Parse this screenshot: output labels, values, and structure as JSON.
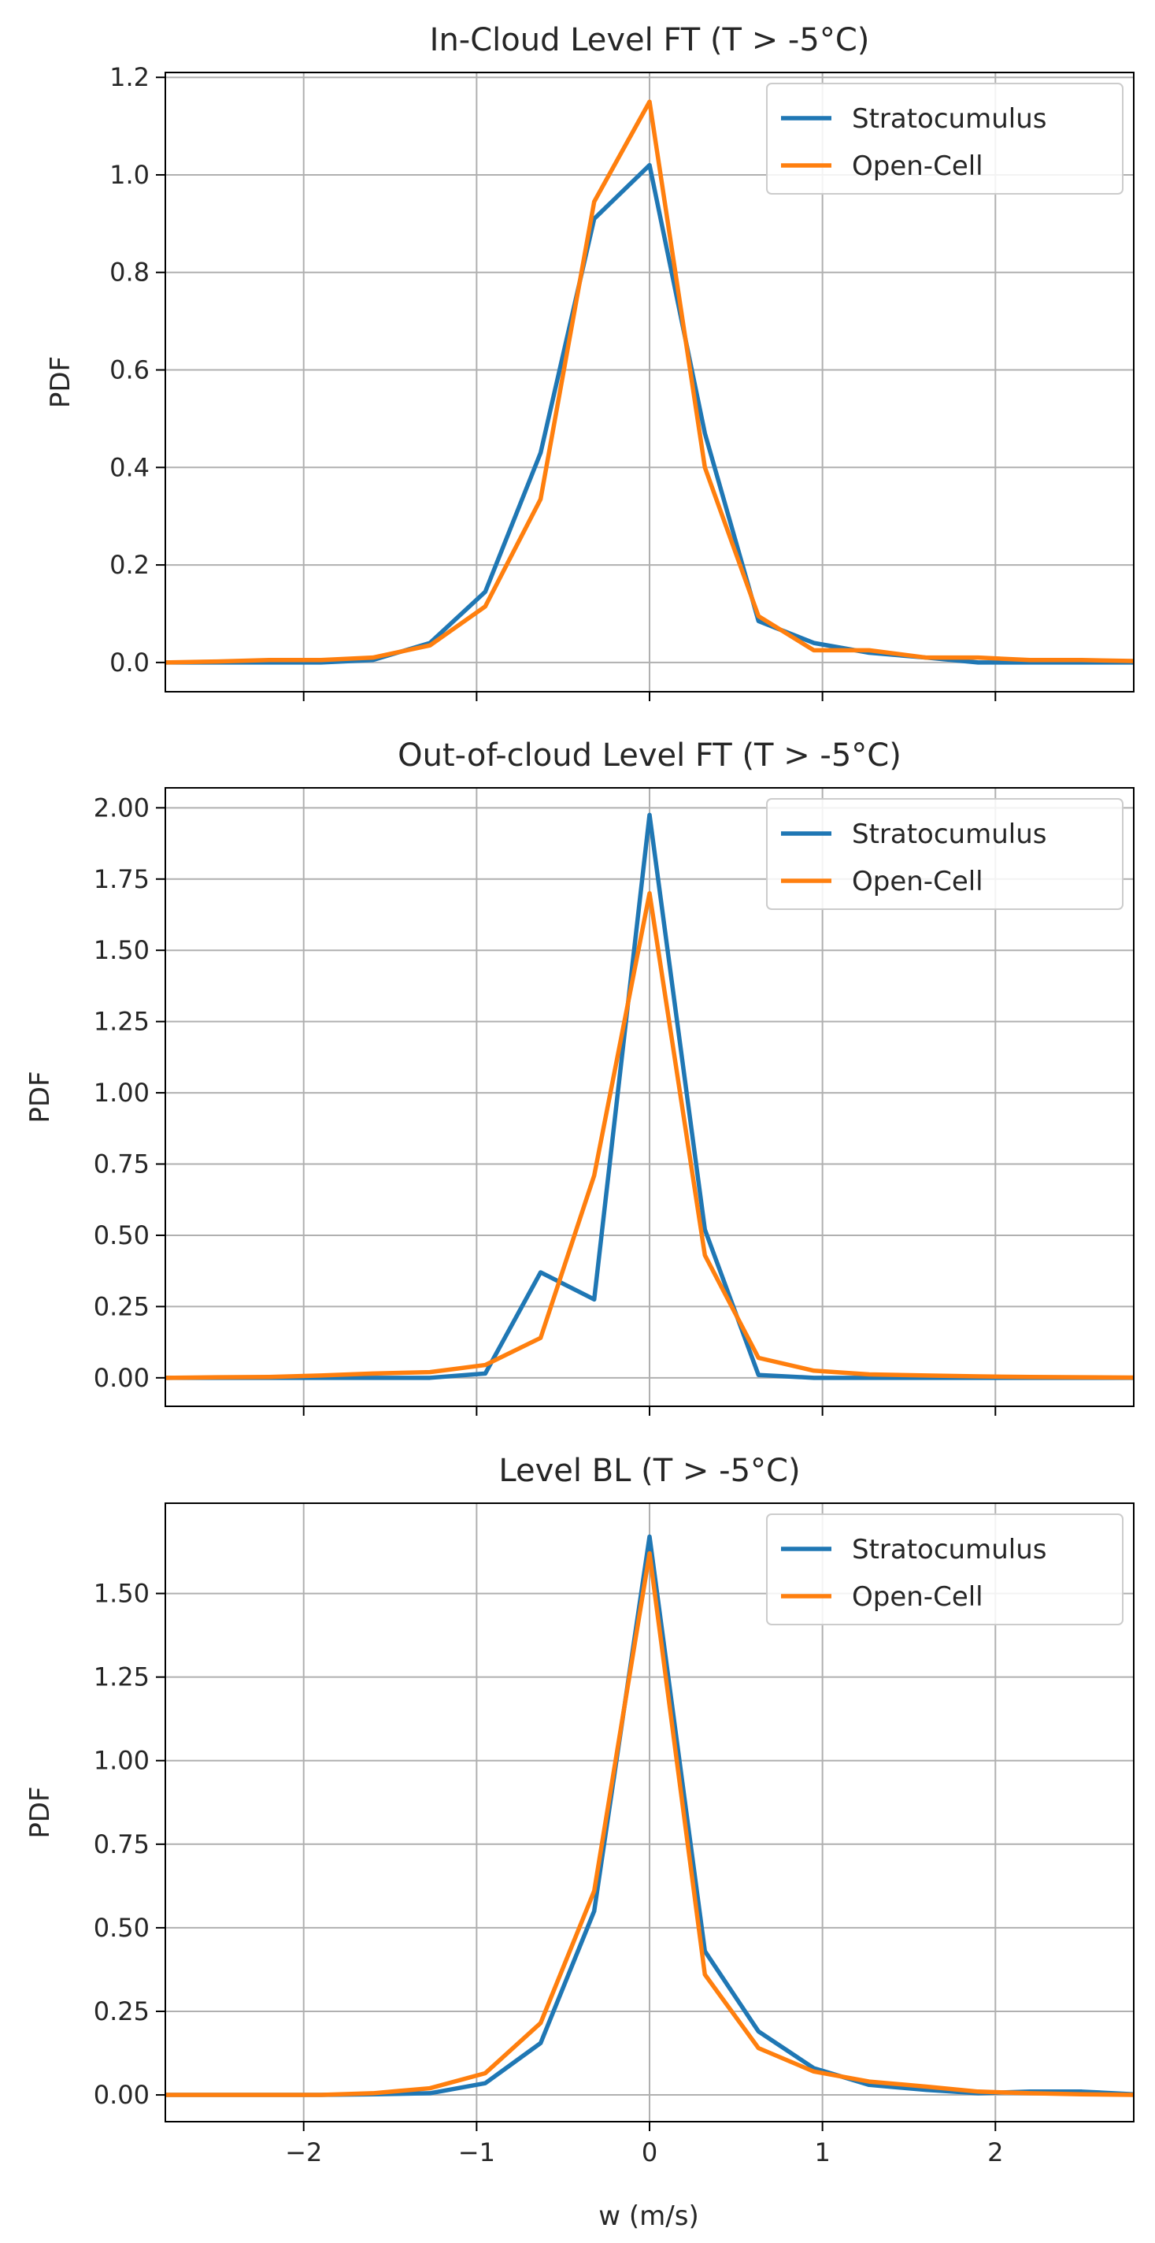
{
  "figure": {
    "xlabel": "w (m/s)",
    "legend_location": "upper right"
  },
  "colors": {
    "Stratocumulus": "#1f77b4",
    "Open-Cell": "#ff7f0e",
    "grid": "#b0b0b0",
    "axis": "#000000"
  },
  "chart_data": [
    {
      "type": "line",
      "title": "In-Cloud Level FT (T > -5°C)",
      "xlabel": "",
      "ylabel": "PDF",
      "xlim": [
        -2.8,
        2.8
      ],
      "ylim": [
        -0.06,
        1.21
      ],
      "xticks": [
        -2,
        -1,
        0,
        1,
        2
      ],
      "xtick_labels": [
        "",
        "",
        "",
        "",
        ""
      ],
      "yticks": [
        0.0,
        0.2,
        0.4,
        0.6,
        0.8,
        1.0,
        1.2
      ],
      "ytick_labels": [
        "0.0",
        "0.2",
        "0.4",
        "0.6",
        "0.8",
        "1.0",
        "1.2"
      ],
      "grid": true,
      "legend": [
        "Stratocumulus",
        "Open-Cell"
      ],
      "x": [
        -2.8,
        -2.5,
        -2.2,
        -1.9,
        -1.6,
        -1.27,
        -0.95,
        -0.63,
        -0.32,
        0.0,
        0.32,
        0.63,
        0.95,
        1.27,
        1.6,
        1.9,
        2.2,
        2.5,
        2.8
      ],
      "series": [
        {
          "name": "Stratocumulus",
          "values": [
            0.0,
            0.0,
            0.0,
            0.0,
            0.005,
            0.04,
            0.145,
            0.43,
            0.91,
            1.02,
            0.47,
            0.085,
            0.04,
            0.02,
            0.01,
            0.0,
            0.0,
            0.0,
            0.0
          ]
        },
        {
          "name": "Open-Cell",
          "values": [
            0.0,
            0.002,
            0.005,
            0.005,
            0.01,
            0.035,
            0.115,
            0.335,
            0.945,
            1.15,
            0.4,
            0.095,
            0.025,
            0.025,
            0.01,
            0.01,
            0.005,
            0.005,
            0.003
          ]
        }
      ]
    },
    {
      "type": "line",
      "title": "Out-of-cloud Level FT (T > -5°C)",
      "xlabel": "",
      "ylabel": "PDF",
      "xlim": [
        -2.8,
        2.8
      ],
      "ylim": [
        -0.1,
        2.07
      ],
      "xticks": [
        -2,
        -1,
        0,
        1,
        2
      ],
      "xtick_labels": [
        "",
        "",
        "",
        "",
        ""
      ],
      "yticks": [
        0.0,
        0.25,
        0.5,
        0.75,
        1.0,
        1.25,
        1.5,
        1.75,
        2.0
      ],
      "ytick_labels": [
        "0.00",
        "0.25",
        "0.50",
        "0.75",
        "1.00",
        "1.25",
        "1.50",
        "1.75",
        "2.00"
      ],
      "grid": true,
      "legend": [
        "Stratocumulus",
        "Open-Cell"
      ],
      "x": [
        -2.8,
        -2.5,
        -2.2,
        -1.9,
        -1.6,
        -1.27,
        -0.95,
        -0.63,
        -0.32,
        0.0,
        0.32,
        0.63,
        0.95,
        1.27,
        1.6,
        1.9,
        2.2,
        2.5,
        2.8
      ],
      "series": [
        {
          "name": "Stratocumulus",
          "values": [
            0.0,
            0.0,
            0.0,
            0.0,
            0.0,
            0.0,
            0.015,
            0.37,
            0.275,
            1.975,
            0.52,
            0.01,
            0.0,
            0.0,
            0.0,
            0.0,
            0.0,
            0.0,
            0.0
          ]
        },
        {
          "name": "Open-Cell",
          "values": [
            0.0,
            0.002,
            0.003,
            0.008,
            0.015,
            0.02,
            0.045,
            0.14,
            0.71,
            1.7,
            0.43,
            0.07,
            0.025,
            0.012,
            0.008,
            0.005,
            0.003,
            0.002,
            0.001
          ]
        }
      ]
    },
    {
      "type": "line",
      "title": "Level BL (T > -5°C)",
      "xlabel": "w (m/s)",
      "ylabel": "PDF",
      "xlim": [
        -2.8,
        2.8
      ],
      "ylim": [
        -0.08,
        1.77
      ],
      "xticks": [
        -2,
        -1,
        0,
        1,
        2
      ],
      "xtick_labels": [
        "−2",
        "−1",
        "0",
        "1",
        "2"
      ],
      "yticks": [
        0.0,
        0.25,
        0.5,
        0.75,
        1.0,
        1.25,
        1.5
      ],
      "ytick_labels": [
        "0.00",
        "0.25",
        "0.50",
        "0.75",
        "1.00",
        "1.25",
        "1.50"
      ],
      "grid": true,
      "legend": [
        "Stratocumulus",
        "Open-Cell"
      ],
      "x": [
        -2.8,
        -2.5,
        -2.2,
        -1.9,
        -1.6,
        -1.27,
        -0.95,
        -0.63,
        -0.32,
        0.0,
        0.32,
        0.63,
        0.95,
        1.27,
        1.6,
        1.9,
        2.2,
        2.5,
        2.8
      ],
      "series": [
        {
          "name": "Stratocumulus",
          "values": [
            0.0,
            0.0,
            0.0,
            0.0,
            0.002,
            0.005,
            0.035,
            0.155,
            0.55,
            1.67,
            0.43,
            0.19,
            0.08,
            0.03,
            0.015,
            0.005,
            0.01,
            0.01,
            0.002
          ]
        },
        {
          "name": "Open-Cell",
          "values": [
            0.0,
            0.0,
            0.0,
            0.0,
            0.005,
            0.02,
            0.065,
            0.215,
            0.61,
            1.62,
            0.36,
            0.14,
            0.07,
            0.04,
            0.025,
            0.01,
            0.005,
            0.002,
            0.0
          ]
        }
      ]
    }
  ]
}
